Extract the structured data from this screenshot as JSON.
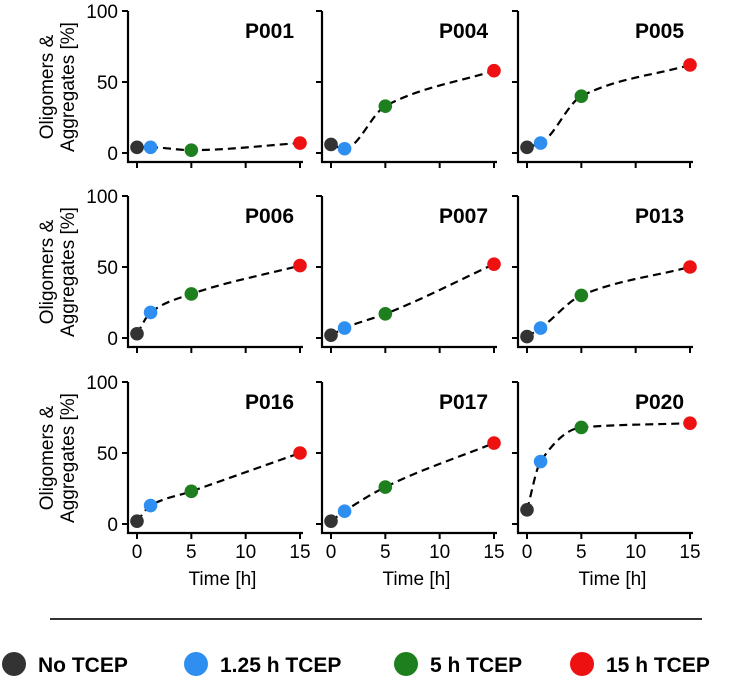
{
  "colors": {
    "no_tcep": "#333333",
    "tcep_125": "#2E8FF0",
    "tcep_5": "#1E7F1E",
    "tcep_15": "#EE1111",
    "axis": "#000000"
  },
  "legend": [
    {
      "label": "No TCEP",
      "color_key": "no_tcep"
    },
    {
      "label": "1.25 h TCEP",
      "color_key": "tcep_125"
    },
    {
      "label": "5 h TCEP",
      "color_key": "tcep_5"
    },
    {
      "label": "15 h TCEP",
      "color_key": "tcep_15"
    }
  ],
  "chart_data": {
    "type": "scatter",
    "layout": "3x3 small multiples",
    "xlabel": "Time [h]",
    "ylabel_line1": "Oligomers &",
    "ylabel_line2": "Aggregates [%]",
    "xlim": [
      0,
      15
    ],
    "ylim": [
      0,
      100
    ],
    "xticks": [
      0,
      5,
      10,
      15
    ],
    "yticks": [
      0,
      50,
      100
    ],
    "x": [
      0,
      1.25,
      5,
      15
    ],
    "point_colors": [
      "no_tcep",
      "tcep_125",
      "tcep_5",
      "tcep_15"
    ],
    "fit": "dashed curve",
    "panels": [
      {
        "name": "P001",
        "values": [
          4,
          4,
          2,
          7
        ]
      },
      {
        "name": "P004",
        "values": [
          6,
          3,
          33,
          58
        ]
      },
      {
        "name": "P005",
        "values": [
          4,
          7,
          40,
          62
        ]
      },
      {
        "name": "P006",
        "values": [
          3,
          18,
          31,
          51
        ]
      },
      {
        "name": "P007",
        "values": [
          2,
          7,
          17,
          52
        ]
      },
      {
        "name": "P013",
        "values": [
          1,
          7,
          30,
          50
        ]
      },
      {
        "name": "P016",
        "values": [
          2,
          13,
          23,
          50
        ]
      },
      {
        "name": "P017",
        "values": [
          2,
          9,
          26,
          57
        ]
      },
      {
        "name": "P020",
        "values": [
          10,
          44,
          68,
          71
        ]
      }
    ]
  }
}
